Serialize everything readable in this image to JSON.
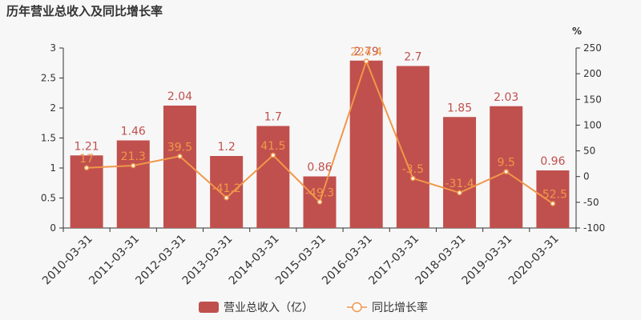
{
  "chart_data": {
    "type": "bar",
    "title": "历年营业总收入及同比增长率",
    "categories": [
      "2010-03-31",
      "2011-03-31",
      "2012-03-31",
      "2013-03-31",
      "2014-03-31",
      "2015-03-31",
      "2016-03-31",
      "2017-03-31",
      "2018-03-31",
      "2019-03-31",
      "2020-03-31"
    ],
    "series": [
      {
        "name": "营业总收入（亿）",
        "type": "bar",
        "axis": "left",
        "color": "#c0504d",
        "values": [
          1.21,
          1.46,
          2.04,
          1.2,
          1.7,
          0.86,
          2.79,
          2.7,
          1.85,
          2.03,
          0.96
        ],
        "labels": [
          "1.21",
          "1.46",
          "2.04",
          "1.2",
          "1.7",
          "0.86",
          "2.79",
          "2.7",
          "1.85",
          "2.03",
          "0.96"
        ]
      },
      {
        "name": "同比增长率",
        "type": "line",
        "axis": "right",
        "color": "#f0974a",
        "values": [
          17,
          21.3,
          39.5,
          -41.2,
          41.5,
          -49.3,
          224.4,
          -3.5,
          -31.4,
          9.5,
          -52.5
        ],
        "labels": [
          "17",
          "21.3",
          "39.5",
          "-41.2",
          "41.5",
          "-49.3",
          "224.4",
          "-3.5",
          "-31.4",
          "9.5",
          "-52.5"
        ]
      }
    ],
    "left_axis": {
      "ylim": [
        0,
        3
      ],
      "ticks": [
        "0",
        "0.5",
        "1",
        "1.5",
        "2",
        "2.5",
        "3"
      ]
    },
    "right_axis": {
      "ylim": [
        -100,
        250
      ],
      "ticks": [
        "-100",
        "-50",
        "0",
        "50",
        "100",
        "150",
        "200",
        "250"
      ],
      "unit": "%"
    },
    "legend_position": "bottom",
    "grid": false
  }
}
